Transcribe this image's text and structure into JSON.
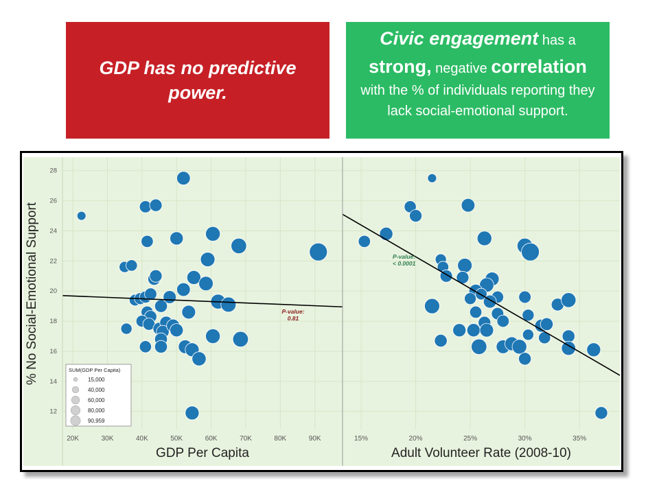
{
  "headline_left": "GDP has no predictive power.",
  "headline_right": {
    "parts": [
      "Civic engagement",
      " has a ",
      "strong,",
      " negative ",
      "correlation",
      " with the % of individuals reporting they lack social-emotional support."
    ]
  },
  "colors": {
    "red_box": "#c62026",
    "green_box": "#2bbb64",
    "plot_bg": "#e8f3df",
    "marker": "#1f77b4",
    "pvalue_left": "#8b1e1e",
    "pvalue_right": "#2e7d4f"
  },
  "chart_data": [
    {
      "type": "scatter",
      "title": "",
      "ylabel": "% No Social-Emotional Support",
      "xlabel": "GDP Per Capita",
      "xlim": [
        17000,
        98000
      ],
      "ylim": [
        10.8,
        28.9
      ],
      "x_ticks": [
        20000,
        30000,
        40000,
        50000,
        60000,
        70000,
        80000,
        90000
      ],
      "x_tick_labels": [
        "20K",
        "30K",
        "40K",
        "50K",
        "60K",
        "70K",
        "80K",
        "90K"
      ],
      "y_ticks": [
        12,
        14,
        16,
        18,
        20,
        22,
        24,
        26,
        28
      ],
      "trend_line": {
        "x": [
          17000,
          98000
        ],
        "y": [
          19.7,
          18.95
        ]
      },
      "annotation": {
        "label": "P-value:",
        "value": "0.81"
      },
      "size_legend": {
        "title": "SUM(GDP Per Capita)",
        "labels": [
          "15,000",
          "40,000",
          "60,000",
          "80,000",
          "90,959"
        ],
        "values": [
          15000,
          40000,
          60000,
          80000,
          90959
        ]
      },
      "points": [
        {
          "x": 22500,
          "y": 25.0
        },
        {
          "x": 41000,
          "y": 25.6
        },
        {
          "x": 44000,
          "y": 25.7
        },
        {
          "x": 52000,
          "y": 27.5
        },
        {
          "x": 41500,
          "y": 23.3
        },
        {
          "x": 50000,
          "y": 23.5
        },
        {
          "x": 60500,
          "y": 23.8
        },
        {
          "x": 68000,
          "y": 23.0
        },
        {
          "x": 91000,
          "y": 22.6
        },
        {
          "x": 35000,
          "y": 21.6
        },
        {
          "x": 37000,
          "y": 21.7
        },
        {
          "x": 59000,
          "y": 22.1
        },
        {
          "x": 43500,
          "y": 20.8
        },
        {
          "x": 44000,
          "y": 21.0
        },
        {
          "x": 55000,
          "y": 20.9
        },
        {
          "x": 58500,
          "y": 20.5
        },
        {
          "x": 52000,
          "y": 20.1
        },
        {
          "x": 38000,
          "y": 19.4
        },
        {
          "x": 39500,
          "y": 19.5
        },
        {
          "x": 41000,
          "y": 19.6
        },
        {
          "x": 42500,
          "y": 19.8
        },
        {
          "x": 48000,
          "y": 19.6
        },
        {
          "x": 45500,
          "y": 19.0
        },
        {
          "x": 62000,
          "y": 19.3
        },
        {
          "x": 65000,
          "y": 19.1
        },
        {
          "x": 41500,
          "y": 18.6
        },
        {
          "x": 42500,
          "y": 18.3
        },
        {
          "x": 40000,
          "y": 18.0
        },
        {
          "x": 42000,
          "y": 17.8
        },
        {
          "x": 45000,
          "y": 17.5
        },
        {
          "x": 47000,
          "y": 17.9
        },
        {
          "x": 46000,
          "y": 17.3
        },
        {
          "x": 49000,
          "y": 17.7
        },
        {
          "x": 50000,
          "y": 17.4
        },
        {
          "x": 53500,
          "y": 18.6
        },
        {
          "x": 35500,
          "y": 17.5
        },
        {
          "x": 41000,
          "y": 16.3
        },
        {
          "x": 45500,
          "y": 16.8
        },
        {
          "x": 45500,
          "y": 16.3
        },
        {
          "x": 52500,
          "y": 16.3
        },
        {
          "x": 54500,
          "y": 16.1
        },
        {
          "x": 60500,
          "y": 17.0
        },
        {
          "x": 68500,
          "y": 16.8
        },
        {
          "x": 56500,
          "y": 15.5
        },
        {
          "x": 54500,
          "y": 11.9
        }
      ]
    },
    {
      "type": "scatter",
      "title": "",
      "ylabel": "% No Social-Emotional Support",
      "xlabel": "Adult Volunteer Rate (2008-10)",
      "xlim": [
        13.3,
        38.7
      ],
      "ylim": [
        10.8,
        28.9
      ],
      "x_ticks": [
        15,
        20,
        25,
        30,
        35
      ],
      "x_tick_labels": [
        "15%",
        "20%",
        "25%",
        "30%",
        "35%"
      ],
      "y_ticks": [
        12,
        14,
        16,
        18,
        20,
        22,
        24,
        26,
        28
      ],
      "trend_line": {
        "x": [
          13.3,
          38.7
        ],
        "y": [
          25.1,
          14.4
        ]
      },
      "annotation": {
        "label": "P-value:",
        "value": "< 0.0001"
      },
      "points": [
        {
          "x": 21.5,
          "y": 27.5
        },
        {
          "x": 19.5,
          "y": 25.6
        },
        {
          "x": 20.0,
          "y": 25.0
        },
        {
          "x": 24.8,
          "y": 25.7
        },
        {
          "x": 15.3,
          "y": 23.3
        },
        {
          "x": 17.3,
          "y": 23.8
        },
        {
          "x": 26.3,
          "y": 23.5
        },
        {
          "x": 30.0,
          "y": 23.0
        },
        {
          "x": 30.5,
          "y": 22.6
        },
        {
          "x": 22.3,
          "y": 22.1
        },
        {
          "x": 22.5,
          "y": 21.6
        },
        {
          "x": 24.5,
          "y": 21.7
        },
        {
          "x": 22.8,
          "y": 21.0
        },
        {
          "x": 24.3,
          "y": 20.9
        },
        {
          "x": 27.0,
          "y": 20.8
        },
        {
          "x": 26.5,
          "y": 20.4
        },
        {
          "x": 25.5,
          "y": 20.0
        },
        {
          "x": 26.0,
          "y": 19.8
        },
        {
          "x": 25.0,
          "y": 19.5
        },
        {
          "x": 27.5,
          "y": 19.6
        },
        {
          "x": 30.0,
          "y": 19.6
        },
        {
          "x": 26.8,
          "y": 19.3
        },
        {
          "x": 33.0,
          "y": 19.1
        },
        {
          "x": 34.0,
          "y": 19.4
        },
        {
          "x": 21.5,
          "y": 19.0
        },
        {
          "x": 25.5,
          "y": 18.6
        },
        {
          "x": 27.5,
          "y": 18.5
        },
        {
          "x": 30.3,
          "y": 18.4
        },
        {
          "x": 28.0,
          "y": 18.0
        },
        {
          "x": 26.3,
          "y": 17.9
        },
        {
          "x": 31.5,
          "y": 17.7
        },
        {
          "x": 32.0,
          "y": 17.8
        },
        {
          "x": 24.0,
          "y": 17.4
        },
        {
          "x": 25.3,
          "y": 17.4
        },
        {
          "x": 26.5,
          "y": 17.4
        },
        {
          "x": 30.3,
          "y": 17.1
        },
        {
          "x": 31.8,
          "y": 16.9
        },
        {
          "x": 34.0,
          "y": 17.0
        },
        {
          "x": 22.3,
          "y": 16.7
        },
        {
          "x": 28.0,
          "y": 16.3
        },
        {
          "x": 28.8,
          "y": 16.5
        },
        {
          "x": 29.5,
          "y": 16.3
        },
        {
          "x": 25.8,
          "y": 16.3
        },
        {
          "x": 34.0,
          "y": 16.2
        },
        {
          "x": 36.3,
          "y": 16.1
        },
        {
          "x": 30.0,
          "y": 15.5
        },
        {
          "x": 37.0,
          "y": 11.9
        }
      ]
    }
  ]
}
